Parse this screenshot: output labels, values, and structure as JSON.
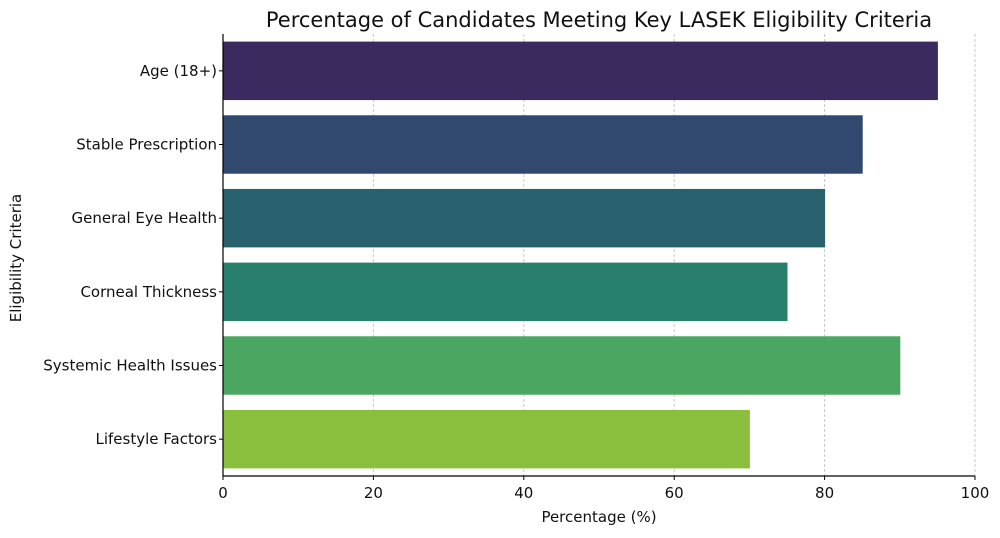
{
  "chart_data": {
    "type": "bar",
    "orientation": "horizontal",
    "title": "Percentage of Candidates Meeting Key LASEK Eligibility Criteria",
    "xlabel": "Percentage (%)",
    "ylabel": "Eligibility Criteria",
    "categories": [
      "Age (18+)",
      "Stable Prescription",
      "General Eye Health",
      "Corneal Thickness",
      "Systemic Health Issues",
      "Lifestyle Factors"
    ],
    "values": [
      95,
      85,
      80,
      75,
      90,
      70
    ],
    "colors": [
      "#3b2a5f",
      "#31496f",
      "#29626e",
      "#287f6c",
      "#4aa661",
      "#8abe3d"
    ],
    "xlim": [
      0,
      100
    ],
    "xticks": [
      "0",
      "20",
      "40",
      "60",
      "80",
      "100"
    ],
    "grid": {
      "x": true,
      "style": "dashed"
    },
    "legend": null
  }
}
